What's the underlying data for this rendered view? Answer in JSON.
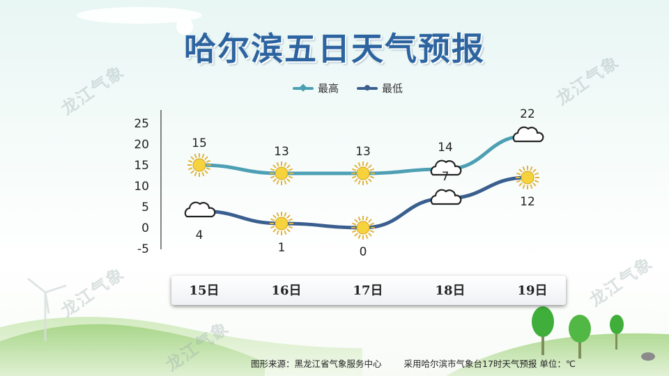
{
  "title": "哈尔滨五日天气预报",
  "watermark": "龙江气象",
  "legend": {
    "high": "最高",
    "low": "最低"
  },
  "colors": {
    "high": "#4d9fb3",
    "low": "#3a5f8f",
    "title": "#2d64a0"
  },
  "footer": {
    "source": "图形来源：黑龙江省气象服务中心",
    "note": "采用哈尔滨市气象台17时天气预报 单位：℃"
  },
  "chart_data": {
    "type": "line",
    "categories": [
      "15日",
      "16日",
      "17日",
      "18日",
      "19日"
    ],
    "series": [
      {
        "name": "最高",
        "values": [
          15,
          13,
          13,
          14,
          22
        ],
        "icons": [
          "sun-icon",
          "sun-icon",
          "sun-icon",
          "cloud-icon",
          "cloud-icon"
        ]
      },
      {
        "name": "最低",
        "values": [
          4,
          1,
          0,
          7,
          12
        ],
        "icons": [
          "cloud-icon",
          "sun-icon",
          "sun-icon",
          "cloud-icon",
          "sun-icon"
        ]
      }
    ],
    "y_ticks": [
      "25",
      "20",
      "15",
      "10",
      "5",
      "0",
      "-5"
    ],
    "ylim": [
      -5,
      25
    ],
    "grid": false,
    "legend_position": "top"
  }
}
